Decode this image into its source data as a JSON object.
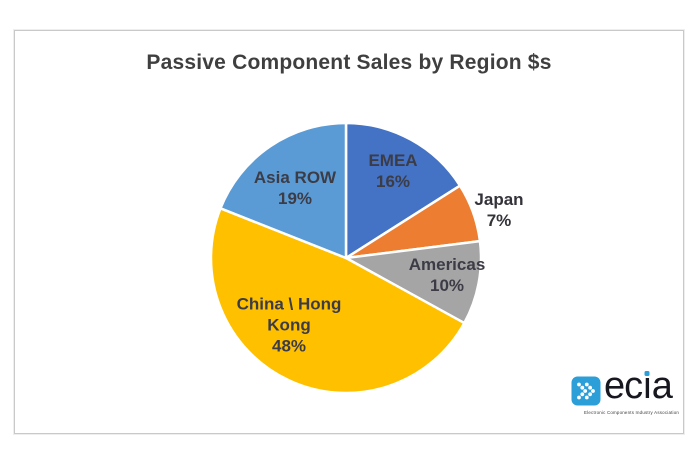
{
  "page": {
    "background_color": "#ffffff",
    "frame_border_color": "#c9c9c9"
  },
  "chart_data": {
    "type": "pie",
    "title": "Passive Component Sales by Region $s",
    "title_color": "#3f3f3f",
    "label_color": "#3c3c46",
    "separator_color": "#ffffff",
    "start_angle": "12 o'clock",
    "direction": "clockwise",
    "legend_position": "none",
    "categories": [
      "EMEA",
      "Japan",
      "Americas",
      "China \\ Hong Kong",
      "Asia ROW"
    ],
    "values": [
      16,
      7,
      10,
      48,
      19
    ],
    "slices": [
      {
        "label": "EMEA",
        "value": 16,
        "pct_label": "16%",
        "color": "#4472C4",
        "label_placement": "inside"
      },
      {
        "label": "Japan",
        "value": 7,
        "pct_label": "7%",
        "color": "#ED7D31",
        "label_placement": "outside"
      },
      {
        "label": "Americas",
        "value": 10,
        "pct_label": "10%",
        "color": "#A5A5A5",
        "label_placement": "inside"
      },
      {
        "label": "China \\ Hong Kong",
        "value": 48,
        "pct_label": "48%",
        "color": "#FFC000",
        "label_placement": "inside"
      },
      {
        "label": "Asia ROW",
        "value": 19,
        "pct_label": "19%",
        "color": "#5B9BD5",
        "label_placement": "inside"
      }
    ]
  },
  "logo": {
    "wordmark": "ecia",
    "wordmark_parts": {
      "pre": "ec",
      "i": "ı",
      "post": "a"
    },
    "tagline": "Electronic Components Industry Association",
    "icon_color": "#2d9fd8",
    "text_color": "#17171f",
    "i_dot_color": "#2d9fd8"
  }
}
